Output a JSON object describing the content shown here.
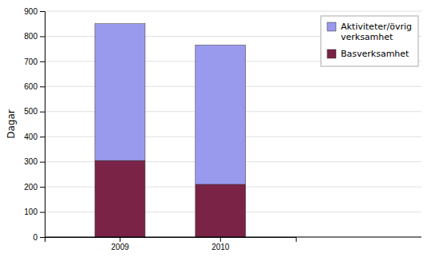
{
  "chart_data": {
    "type": "bar",
    "stacked": true,
    "categories": [
      "2009",
      "2010"
    ],
    "series": [
      {
        "name": "Basverksamhet",
        "color": "#7B2346",
        "values": [
          305,
          210
        ]
      },
      {
        "name": "Aktiviteter/övrig\nverksamhet",
        "color": "#9999EE",
        "values": [
          545,
          555
        ]
      }
    ],
    "ylabel": "Dagar",
    "ylim": [
      0,
      900
    ],
    "yticks": [
      0,
      100,
      200,
      300,
      400,
      500,
      600,
      700,
      800,
      900
    ],
    "grid": true,
    "legend": "upper right"
  }
}
